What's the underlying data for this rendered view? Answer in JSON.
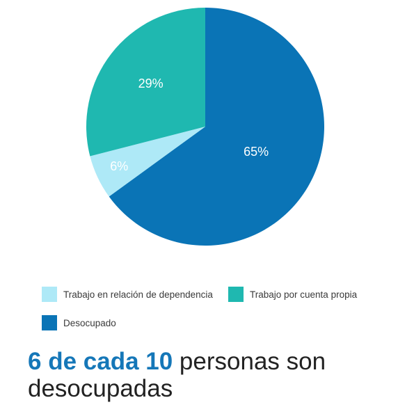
{
  "chart_data": {
    "type": "pie",
    "slices": [
      {
        "name": "Desocupado",
        "value": 65,
        "label": "65%",
        "color": "#0a74b6"
      },
      {
        "name": "Trabajo en relación de dependencia",
        "value": 6,
        "label": "6%",
        "color": "#aee9f7"
      },
      {
        "name": "Trabajo por cuenta propia",
        "value": 29,
        "label": "29%",
        "color": "#1fb8b0"
      }
    ]
  },
  "legend": {
    "items": [
      {
        "label": "Trabajo en relación de dependencia",
        "color": "#aee9f7"
      },
      {
        "label": "Trabajo por cuenta propia",
        "color": "#1fb8b0"
      },
      {
        "label": "Desocupado",
        "color": "#0a74b6"
      }
    ]
  },
  "headline": {
    "highlight": "6 de cada 10",
    "rest": " personas son desocupadas",
    "highlight_color": "#1577b8"
  }
}
